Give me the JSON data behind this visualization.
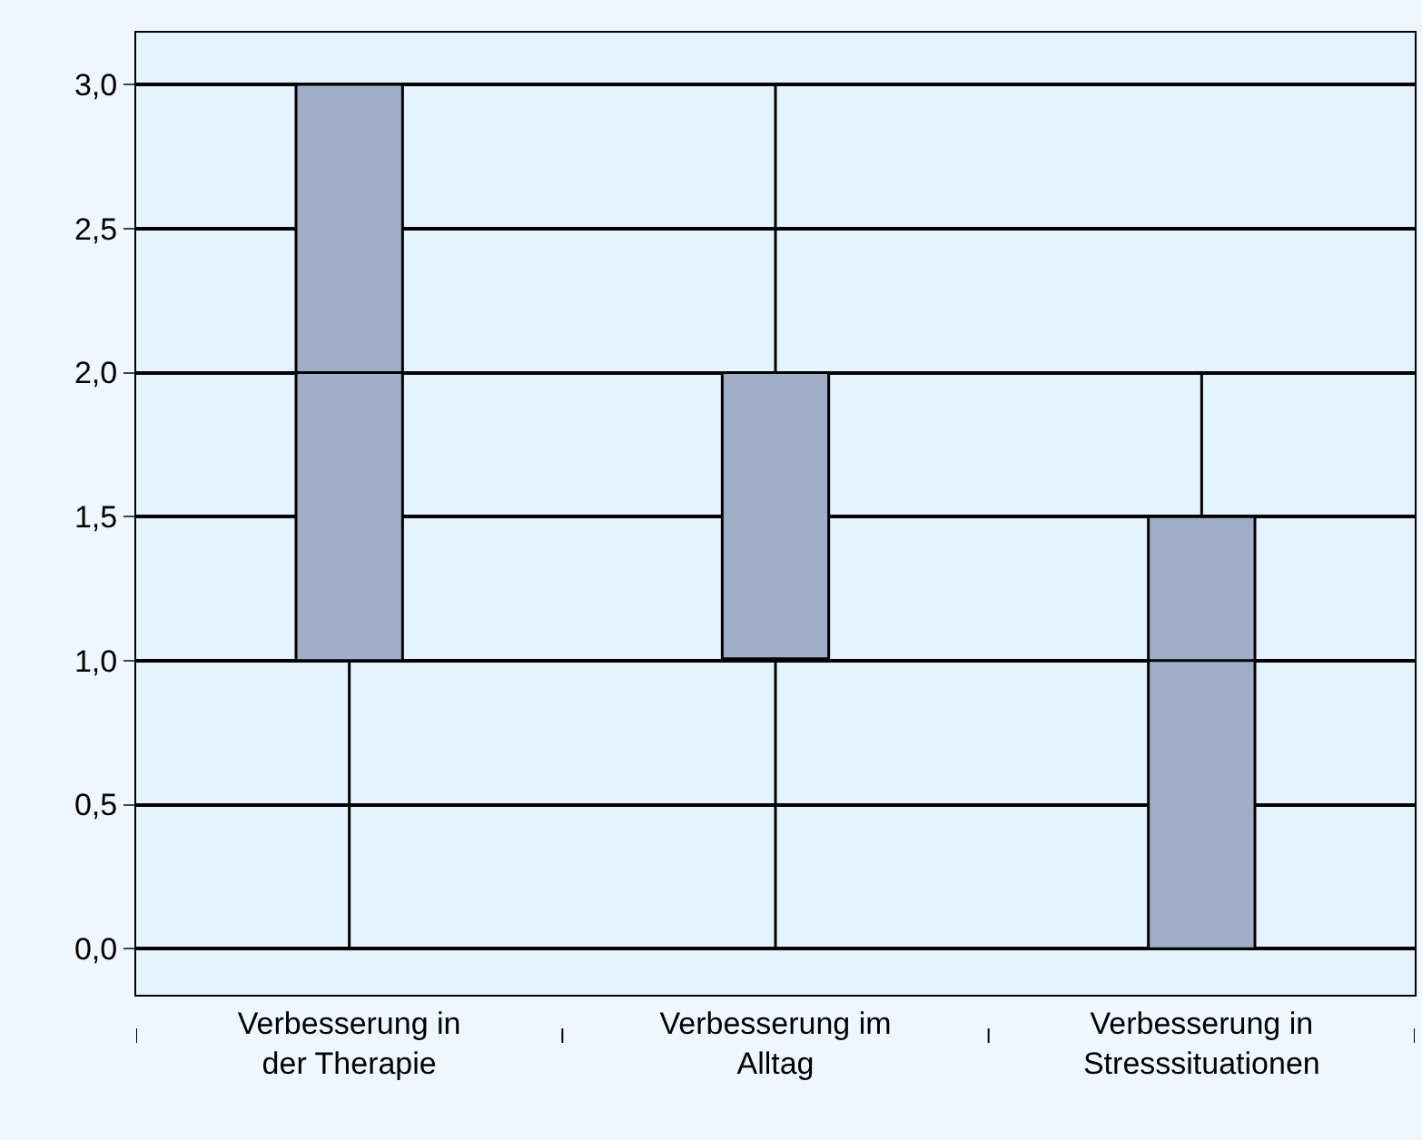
{
  "chart_data": {
    "type": "box",
    "categories": [
      "Verbesserung in\nder Therapie",
      "Verbesserung im\nAlltag",
      "Verbesserung in\nStresssituationen"
    ],
    "boxes": [
      {
        "low": 0,
        "q1": 1,
        "median": 2,
        "q3": 3,
        "high": 3
      },
      {
        "low": 0,
        "q1": 1,
        "median": 1,
        "q3": 2,
        "high": 3
      },
      {
        "low": 0,
        "q1": 0,
        "median": 1,
        "q3": 1.5,
        "high": 2
      }
    ],
    "color": "#a0aec8",
    "ylim": [
      -0.16,
      3.18
    ],
    "yticks": [
      {
        "value": 0,
        "label": "0,0"
      },
      {
        "value": 0.5,
        "label": "0,5"
      },
      {
        "value": 1,
        "label": "1,0"
      },
      {
        "value": 1.5,
        "label": "1,5"
      },
      {
        "value": 2,
        "label": "2,0"
      },
      {
        "value": 2.5,
        "label": "2,5"
      },
      {
        "value": 3,
        "label": "3,0"
      }
    ],
    "grid": "y"
  }
}
